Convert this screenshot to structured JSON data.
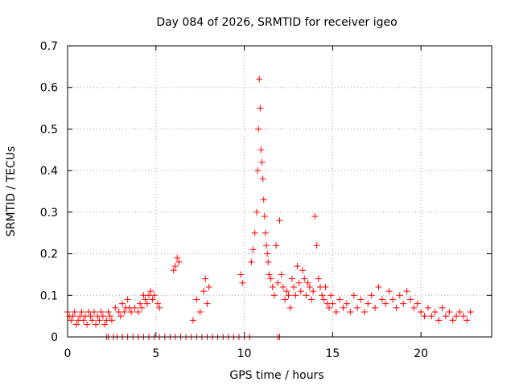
{
  "chart_data": {
    "type": "scatter",
    "title": "Day 084 of 2026, SRMTID for receiver igeo",
    "xlabel": "GPS time / hours",
    "ylabel": "SRMTID / TECUs",
    "xlim": [
      0,
      24
    ],
    "ylim": [
      0,
      0.7
    ],
    "xticks": [
      0,
      5,
      10,
      15,
      20
    ],
    "xtick_labels": [
      "0",
      "5",
      "10",
      "15",
      "20"
    ],
    "yticks": [
      0,
      0.1,
      0.2,
      0.3,
      0.4,
      0.5,
      0.6,
      0.7
    ],
    "ytick_labels": [
      "0",
      "0.1",
      "0.2",
      "0.3",
      "0.4",
      "0.5",
      "0.6",
      "0.7"
    ],
    "grid": true,
    "marker": "+",
    "color": "#ff0000",
    "series": [
      {
        "name": "SRMTID",
        "x": [
          0.0,
          0.1,
          0.2,
          0.3,
          0.4,
          0.5,
          0.6,
          0.7,
          0.8,
          0.9,
          1.0,
          1.1,
          1.2,
          1.3,
          1.4,
          1.5,
          1.6,
          1.7,
          1.8,
          1.9,
          2.0,
          2.1,
          2.2,
          2.3,
          2.4,
          2.5,
          2.7,
          2.9,
          3.0,
          3.1,
          3.2,
          3.3,
          3.4,
          3.5,
          3.6,
          3.8,
          4.0,
          4.1,
          4.2,
          4.3,
          4.4,
          4.5,
          4.6,
          4.7,
          4.8,
          4.9,
          5.1,
          5.2,
          6.0,
          6.1,
          6.2,
          6.3,
          7.1,
          7.3,
          7.5,
          7.7,
          7.8,
          7.9,
          8.0,
          9.8,
          9.9,
          10.4,
          10.5,
          10.6,
          10.7,
          10.75,
          10.8,
          10.85,
          10.9,
          10.95,
          11.0,
          11.05,
          11.1,
          11.15,
          11.2,
          11.25,
          11.3,
          11.35,
          11.4,
          11.5,
          11.6,
          11.7,
          11.8,
          11.9,
          12.0,
          12.1,
          12.2,
          12.3,
          12.4,
          12.5,
          12.6,
          12.7,
          12.8,
          12.9,
          13.0,
          13.1,
          13.2,
          13.3,
          13.4,
          13.5,
          13.6,
          13.7,
          13.8,
          13.9,
          14.0,
          14.1,
          14.2,
          14.3,
          14.4,
          14.5,
          14.6,
          14.7,
          14.8,
          14.9,
          15.0,
          15.2,
          15.4,
          15.6,
          15.8,
          16.0,
          16.2,
          16.4,
          16.6,
          16.8,
          17.0,
          17.2,
          17.4,
          17.6,
          17.8,
          18.0,
          18.2,
          18.4,
          18.6,
          18.8,
          19.0,
          19.2,
          19.4,
          19.6,
          19.8,
          20.0,
          20.2,
          20.4,
          20.6,
          20.8,
          21.0,
          21.2,
          21.4,
          21.6,
          21.8,
          22.0,
          22.2,
          22.4,
          22.6,
          22.8
        ],
        "y": [
          0.06,
          0.05,
          0.04,
          0.05,
          0.06,
          0.03,
          0.04,
          0.05,
          0.06,
          0.04,
          0.05,
          0.03,
          0.06,
          0.05,
          0.04,
          0.06,
          0.03,
          0.05,
          0.04,
          0.06,
          0.05,
          0.03,
          0.04,
          0.06,
          0.05,
          0.04,
          0.07,
          0.06,
          0.05,
          0.08,
          0.06,
          0.07,
          0.09,
          0.07,
          0.06,
          0.07,
          0.06,
          0.08,
          0.07,
          0.1,
          0.09,
          0.08,
          0.1,
          0.11,
          0.09,
          0.1,
          0.08,
          0.07,
          0.16,
          0.17,
          0.19,
          0.18,
          0.04,
          0.09,
          0.06,
          0.11,
          0.14,
          0.08,
          0.12,
          0.15,
          0.13,
          0.18,
          0.21,
          0.25,
          0.3,
          0.4,
          0.5,
          0.62,
          0.55,
          0.45,
          0.42,
          0.38,
          0.33,
          0.29,
          0.25,
          0.22,
          0.2,
          0.18,
          0.15,
          0.14,
          0.12,
          0.1,
          0.22,
          0.13,
          0.28,
          0.15,
          0.12,
          0.09,
          0.11,
          0.1,
          0.07,
          0.14,
          0.12,
          0.1,
          0.17,
          0.13,
          0.11,
          0.16,
          0.14,
          0.1,
          0.13,
          0.12,
          0.09,
          0.11,
          0.29,
          0.22,
          0.14,
          0.12,
          0.1,
          0.09,
          0.12,
          0.08,
          0.07,
          0.1,
          0.08,
          0.06,
          0.09,
          0.07,
          0.08,
          0.06,
          0.1,
          0.07,
          0.09,
          0.06,
          0.08,
          0.1,
          0.07,
          0.12,
          0.09,
          0.08,
          0.11,
          0.09,
          0.07,
          0.1,
          0.08,
          0.11,
          0.09,
          0.07,
          0.08,
          0.06,
          0.05,
          0.07,
          0.05,
          0.06,
          0.04,
          0.07,
          0.05,
          0.06,
          0.04,
          0.05,
          0.06,
          0.05,
          0.04,
          0.06
        ]
      }
    ],
    "zero_points_x": [
      2.2,
      2.3,
      2.6,
      2.8,
      3.1,
      3.4,
      3.7,
      4.0,
      4.3,
      4.6,
      4.9,
      5.2,
      5.5,
      5.8,
      6.1,
      6.4,
      6.7,
      7.0,
      7.3,
      7.6,
      7.9,
      8.2,
      8.5,
      8.8,
      9.1,
      9.4,
      9.7,
      10.0,
      10.3,
      11.9,
      12.0
    ]
  }
}
